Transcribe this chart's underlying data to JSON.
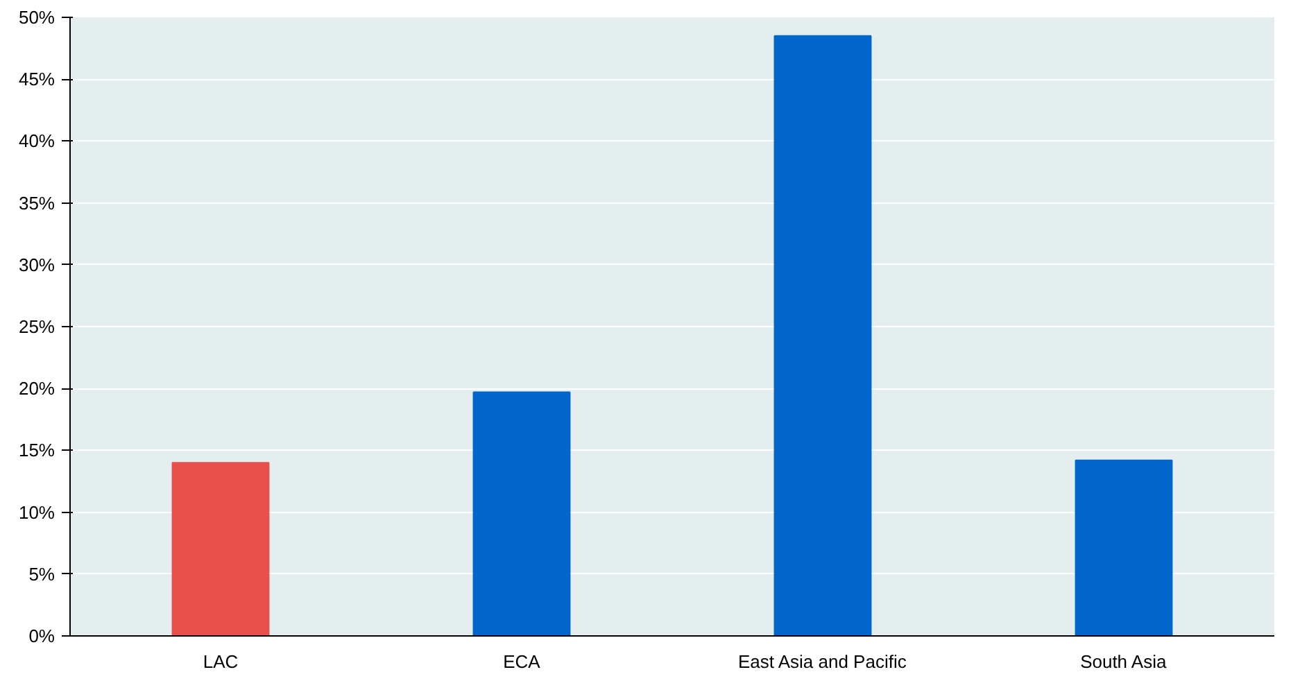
{
  "chart_data": {
    "type": "bar",
    "categories": [
      "LAC",
      "ECA",
      "East Asia and Pacific",
      "South Asia"
    ],
    "values": [
      14.0,
      19.7,
      48.5,
      14.2
    ],
    "colors": [
      "#e8504c",
      "#0066cc",
      "#0066cc",
      "#0066cc"
    ],
    "ylim": [
      0,
      50
    ],
    "yticks": [
      {
        "value": 0,
        "label": "0%"
      },
      {
        "value": 5,
        "label": "5%"
      },
      {
        "value": 10,
        "label": "10%"
      },
      {
        "value": 15,
        "label": "15%"
      },
      {
        "value": 20,
        "label": "20%"
      },
      {
        "value": 25,
        "label": "25%"
      },
      {
        "value": 30,
        "label": "30%"
      },
      {
        "value": 35,
        "label": "35%"
      },
      {
        "value": 40,
        "label": "40%"
      },
      {
        "value": 45,
        "label": "45%"
      },
      {
        "value": 50,
        "label": "50%"
      }
    ],
    "grid": "y"
  }
}
